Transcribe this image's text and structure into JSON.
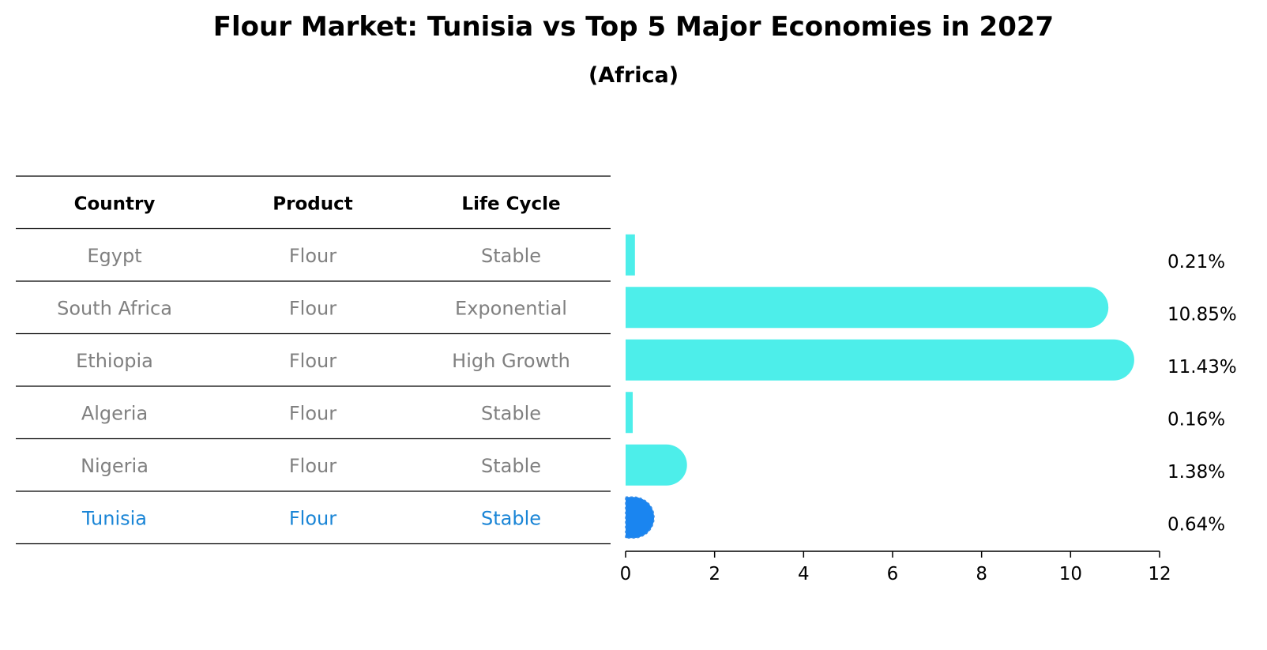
{
  "title": "Flour Market: Tunisia vs Top 5 Major Economies in 2027",
  "subtitle": "(Africa)",
  "table": {
    "headers": [
      "Country",
      "Product",
      "Life Cycle"
    ],
    "rows": [
      [
        "Egypt",
        "Flour",
        "Stable"
      ],
      [
        "South Africa",
        "Flour",
        "Exponential"
      ],
      [
        "Ethiopia",
        "Flour",
        "High Growth"
      ],
      [
        "Algeria",
        "Flour",
        "Stable"
      ],
      [
        "Nigeria",
        "Flour",
        "Stable"
      ],
      [
        "Tunisia",
        "Flour",
        "Stable"
      ]
    ],
    "highlight_row": "Tunisia"
  },
  "colors": {
    "bar": "#4DEEEA",
    "highlight_bar": "#1A85F0",
    "highlight_text": "#1A85D6",
    "muted_text": "#808080"
  },
  "chart_data": {
    "type": "bar",
    "orientation": "horizontal",
    "categories": [
      "Egypt",
      "South Africa",
      "Ethiopia",
      "Algeria",
      "Nigeria",
      "Tunisia"
    ],
    "values": [
      0.21,
      10.85,
      11.43,
      0.16,
      1.38,
      0.64
    ],
    "value_labels": [
      "0.21%",
      "10.85%",
      "11.43%",
      "0.16%",
      "1.38%",
      "0.64%"
    ],
    "xlim": [
      0,
      12
    ],
    "xticks": [
      0,
      2,
      4,
      6,
      8,
      10,
      12
    ],
    "grid": false
  }
}
